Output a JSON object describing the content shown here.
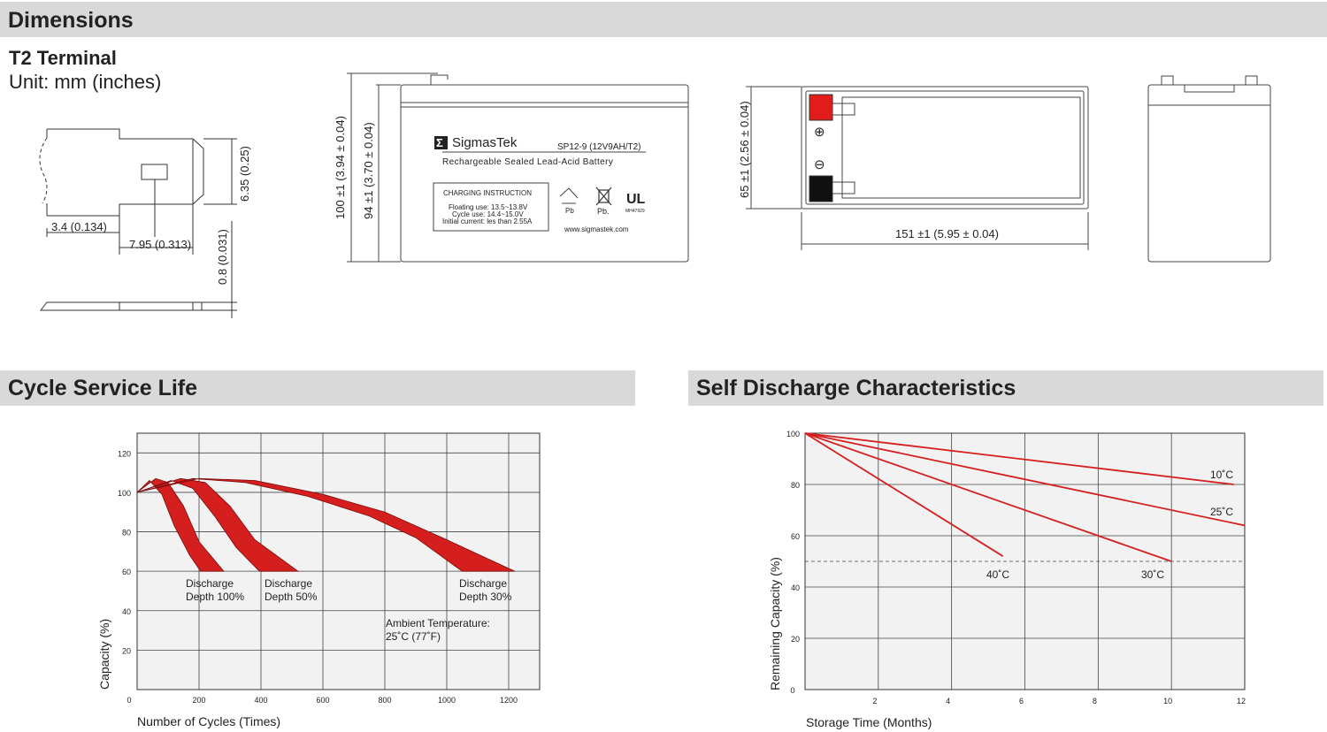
{
  "sections": {
    "dimensions": "Dimensions",
    "cycle": "Cycle Service Life",
    "self_discharge": "Self Discharge Characteristics"
  },
  "terminal": {
    "title": "T2 Terminal",
    "unit": "Unit: mm (inches)",
    "dims": {
      "height_tab": "6.35 (0.25)",
      "offset": "3.4 (0.134)",
      "width_hole": "7.95 (0.313)",
      "thickness": "0.8 (0.031)"
    }
  },
  "battery": {
    "brand": "SigmasTek",
    "model": "SP12-9 (12V9AH/T2)",
    "description": "Rechargeable Sealed Lead-Acid Battery",
    "charging_title": "CHARGING INSTRUCTION",
    "charging_lines": [
      "Floating use: 13.5~13.8V",
      "Cycle use: 14.4~15.0V",
      "Initial current: les than 2.55A"
    ],
    "pb1": "Pb",
    "pb2": "Pb.",
    "ul_code": "MH47929",
    "url": "www.sigmastek.com",
    "dim_total_height": "100 ±1 (3.94 ± 0.04)",
    "dim_case_height": "94 ±1 (3.70 ± 0.04)",
    "dim_width": "65 ±1 (2.56 ± 0.04)",
    "dim_length": "151 ±1 (5.95 ± 0.04)",
    "plus": "⊕",
    "minus": "⊖"
  },
  "colors": {
    "band": "#d9d9d9",
    "curve_red": "#d51f1f",
    "plot_bg": "#f2f2f2",
    "terminal_red": "#e21b1b",
    "terminal_black": "#111111"
  },
  "chart_data": [
    {
      "type": "area",
      "title": "Cycle Service Life",
      "xlabel": "Number of Cycles (Times)",
      "ylabel": "Capacity (%)",
      "xlim": [
        0,
        1300
      ],
      "ylim": [
        0,
        130
      ],
      "x_ticks": [
        0,
        200,
        400,
        600,
        800,
        1000,
        1200
      ],
      "y_ticks": [
        20,
        40,
        60,
        80,
        100,
        120
      ],
      "grid": true,
      "series": [
        {
          "name": "Discharge Depth 100%",
          "upper": [
            [
              0,
              100
            ],
            [
              60,
              107
            ],
            [
              100,
              105
            ],
            [
              150,
              93
            ],
            [
              200,
              75
            ],
            [
              280,
              60
            ]
          ],
          "lower": [
            [
              0,
              100
            ],
            [
              40,
              106
            ],
            [
              80,
              99
            ],
            [
              120,
              83
            ],
            [
              170,
              68
            ],
            [
              205,
              60
            ]
          ]
        },
        {
          "name": "Discharge Depth 50%",
          "upper": [
            [
              0,
              100
            ],
            [
              140,
              107
            ],
            [
              220,
              105
            ],
            [
              300,
              93
            ],
            [
              380,
              76
            ],
            [
              520,
              60
            ]
          ],
          "lower": [
            [
              0,
              100
            ],
            [
              110,
              106
            ],
            [
              180,
              102
            ],
            [
              250,
              88
            ],
            [
              320,
              72
            ],
            [
              395,
              60
            ]
          ]
        },
        {
          "name": "Discharge Depth 30%",
          "upper": [
            [
              0,
              100
            ],
            [
              200,
              107
            ],
            [
              380,
              106
            ],
            [
              600,
              99
            ],
            [
              800,
              90
            ],
            [
              1000,
              76
            ],
            [
              1220,
              60
            ]
          ],
          "lower": [
            [
              0,
              100
            ],
            [
              180,
              107
            ],
            [
              350,
              105
            ],
            [
              550,
              98
            ],
            [
              750,
              88
            ],
            [
              900,
              77
            ],
            [
              1050,
              60
            ]
          ]
        }
      ],
      "annotations": [
        {
          "lines": [
            "Discharge",
            "Depth 100%"
          ]
        },
        {
          "lines": [
            "Discharge",
            "Depth 50%"
          ]
        },
        {
          "lines": [
            "Discharge",
            "Depth 30%"
          ]
        },
        {
          "lines": [
            "Ambient Temperature:",
            "25˚C (77˚F)"
          ]
        }
      ]
    },
    {
      "type": "line",
      "title": "Self Discharge Characteristics",
      "xlabel": "Storage Time (Months)",
      "ylabel": "Remaining Capacity (%)",
      "xlim": [
        0,
        12
      ],
      "ylim": [
        0,
        100
      ],
      "x_ticks": [
        0,
        2,
        4,
        6,
        8,
        10,
        12
      ],
      "y_ticks": [
        20,
        40,
        60,
        80,
        100
      ],
      "reference_line": 50,
      "grid": true,
      "series": [
        {
          "name": "10˚C",
          "x": [
            0,
            11.7
          ],
          "y": [
            100,
            80
          ]
        },
        {
          "name": "25˚C",
          "x": [
            0,
            12
          ],
          "y": [
            100,
            64
          ]
        },
        {
          "name": "30˚C",
          "x": [
            0,
            10
          ],
          "y": [
            100,
            50
          ]
        },
        {
          "name": "40˚C",
          "x": [
            0,
            5.4
          ],
          "y": [
            100,
            52
          ]
        }
      ]
    }
  ]
}
